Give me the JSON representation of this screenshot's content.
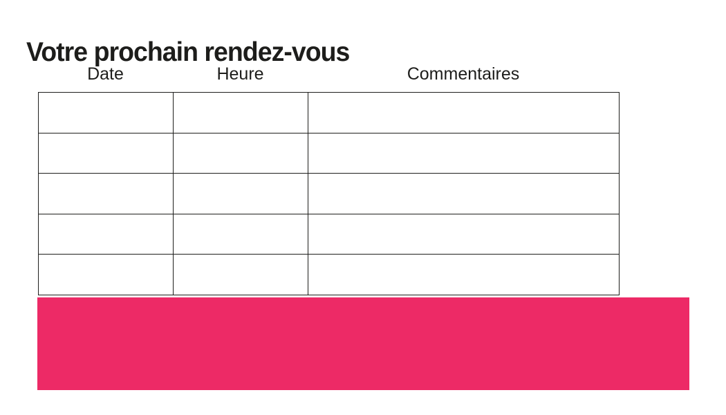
{
  "slide": {
    "title": "Votre prochain rendez-vous"
  },
  "appointment_table": {
    "columns": [
      {
        "label": "Date"
      },
      {
        "label": "Heure"
      },
      {
        "label": "Commentaires"
      }
    ],
    "rows": [
      [
        "",
        "",
        ""
      ],
      [
        "",
        "",
        ""
      ],
      [
        "",
        "",
        ""
      ],
      [
        "",
        "",
        ""
      ],
      [
        "",
        "",
        ""
      ]
    ]
  },
  "colors": {
    "accent_pink": "#ed2a66",
    "table_border": "#1d1d1b",
    "text": "#1d1d1b"
  }
}
